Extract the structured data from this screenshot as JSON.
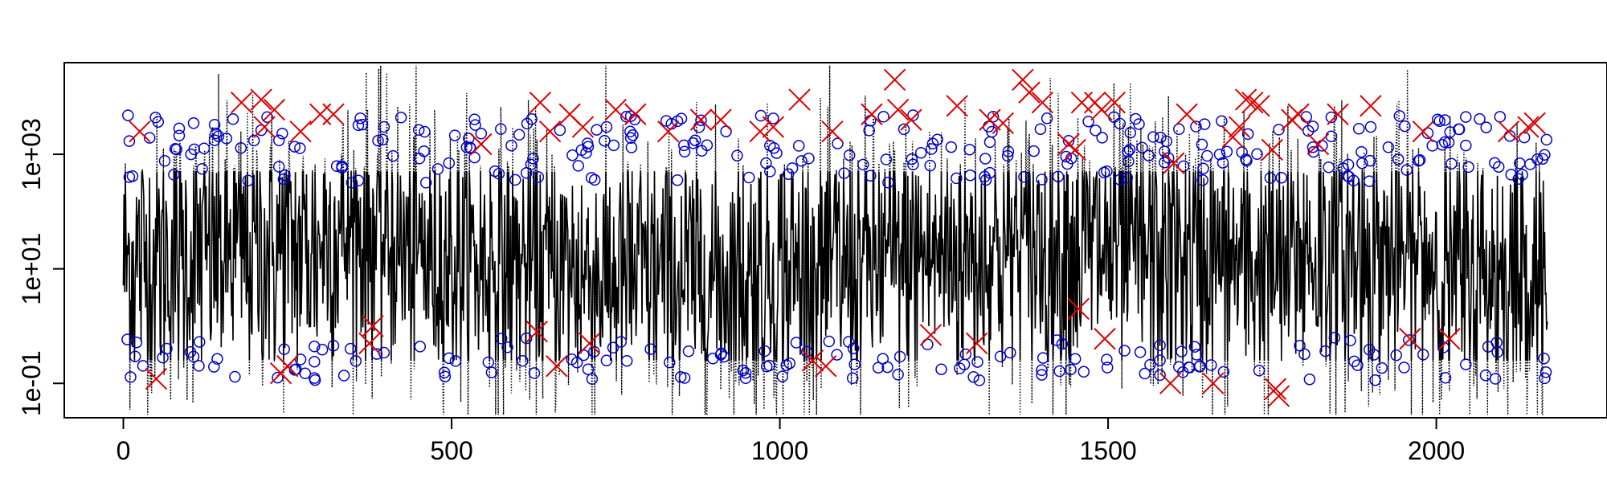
{
  "chart_data": {
    "type": "line",
    "title": "",
    "xlabel": "",
    "ylabel": "",
    "xlim": [
      -90,
      2260
    ],
    "ylim_log10": [
      -1.6,
      4.6
    ],
    "y_scale": "log",
    "grid": false,
    "legend": "none",
    "x_ticks": [
      {
        "value": 0,
        "label": "0"
      },
      {
        "value": 500,
        "label": "500"
      },
      {
        "value": 1000,
        "label": "1000"
      },
      {
        "value": 1500,
        "label": "1500"
      },
      {
        "value": 2000,
        "label": "2000"
      }
    ],
    "y_ticks": [
      {
        "value": 0.1,
        "label": "1e-01"
      },
      {
        "value": 10,
        "label": "1e+01"
      },
      {
        "value": 1000,
        "label": "1e+03"
      }
    ],
    "n_points": 2170,
    "series": [
      {
        "style": "dotted-line",
        "color": "#000000",
        "approx_range": [
          0.05,
          40000
        ]
      },
      {
        "style": "open-circle",
        "color": "#0000cc"
      },
      {
        "style": "x-cross",
        "color": "#dd0000"
      }
    ],
    "red_crosses": [
      [
        25,
        2500
      ],
      [
        50,
        0.12
      ],
      [
        180,
        8000
      ],
      [
        210,
        9000
      ],
      [
        215,
        3000
      ],
      [
        230,
        6000
      ],
      [
        240,
        0.15
      ],
      [
        250,
        0.2
      ],
      [
        270,
        2500
      ],
      [
        300,
        5000
      ],
      [
        320,
        5000
      ],
      [
        375,
        0.5
      ],
      [
        380,
        1.0
      ],
      [
        545,
        1500
      ],
      [
        630,
        0.8
      ],
      [
        635,
        8000
      ],
      [
        650,
        2500
      ],
      [
        660,
        0.2
      ],
      [
        680,
        5000
      ],
      [
        700,
        3000
      ],
      [
        710,
        0.5
      ],
      [
        750,
        6000
      ],
      [
        780,
        5000
      ],
      [
        830,
        2500
      ],
      [
        880,
        4000
      ],
      [
        910,
        4000
      ],
      [
        970,
        2500
      ],
      [
        990,
        3000
      ],
      [
        1030,
        9000
      ],
      [
        1050,
        0.25
      ],
      [
        1070,
        0.2
      ],
      [
        1080,
        2500
      ],
      [
        1140,
        5000
      ],
      [
        1175,
        20000
      ],
      [
        1180,
        6000
      ],
      [
        1200,
        4000
      ],
      [
        1230,
        0.7
      ],
      [
        1270,
        7000
      ],
      [
        1300,
        0.5
      ],
      [
        1320,
        4000
      ],
      [
        1340,
        3500
      ],
      [
        1370,
        20000
      ],
      [
        1380,
        12000
      ],
      [
        1400,
        8000
      ],
      [
        1440,
        1500
      ],
      [
        1450,
        1200
      ],
      [
        1455,
        2.0
      ],
      [
        1460,
        8000
      ],
      [
        1480,
        8000
      ],
      [
        1490,
        6000
      ],
      [
        1495,
        0.6
      ],
      [
        1510,
        8000
      ],
      [
        1595,
        0.1
      ],
      [
        1600,
        700
      ],
      [
        1620,
        5000
      ],
      [
        1660,
        0.1
      ],
      [
        1690,
        2000
      ],
      [
        1700,
        3000
      ],
      [
        1710,
        9000
      ],
      [
        1720,
        8000
      ],
      [
        1730,
        7000
      ],
      [
        1750,
        1200
      ],
      [
        1755,
        0.08
      ],
      [
        1760,
        0.06
      ],
      [
        1780,
        4000
      ],
      [
        1790,
        5000
      ],
      [
        1820,
        1500
      ],
      [
        1850,
        5000
      ],
      [
        1900,
        7000
      ],
      [
        1960,
        0.6
      ],
      [
        1980,
        2500
      ],
      [
        2020,
        0.6
      ],
      [
        2110,
        2500
      ],
      [
        2140,
        3000
      ],
      [
        2150,
        3500
      ]
    ]
  }
}
